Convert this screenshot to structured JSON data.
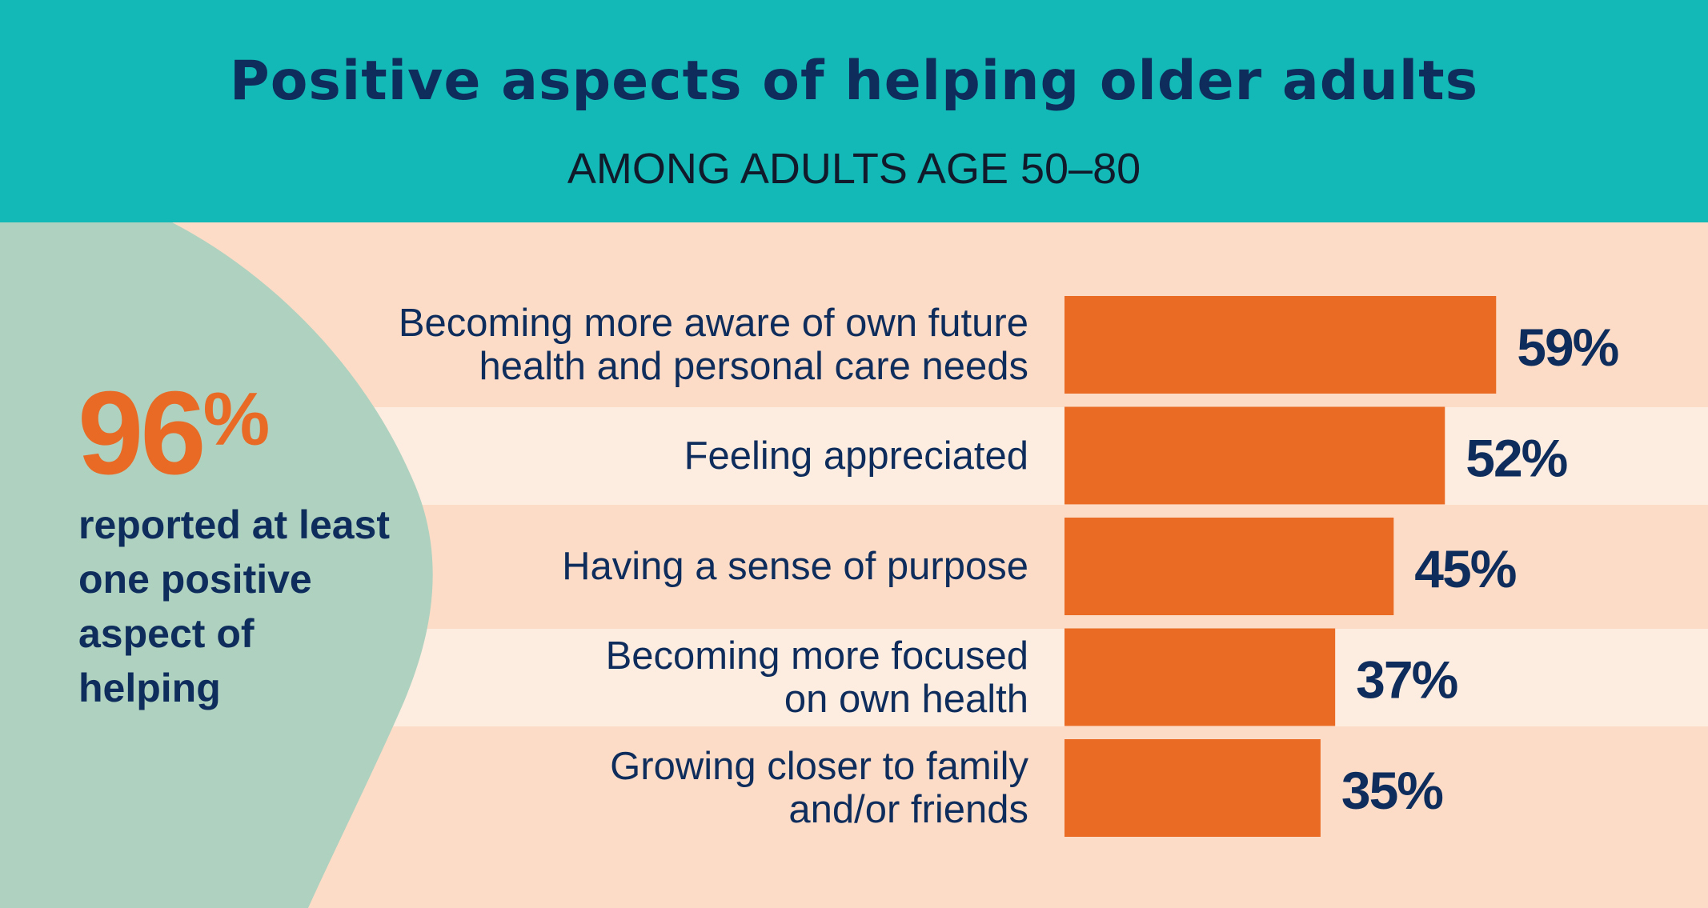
{
  "title": "Positive aspects of helping older adults",
  "subtitle": "AMONG ADULTS AGE 50–80",
  "callout": {
    "value": "96",
    "unit": "%",
    "text": "reported at least one positive aspect of helping"
  },
  "colors": {
    "header": "#12b9b6",
    "background": "#fcdcc6",
    "stripe_light": "#fdece0",
    "blob": "#afd1bf",
    "bar": "#ea6b23",
    "navy": "#0f2d5c",
    "accent": "#e86a25"
  },
  "chart_data": {
    "type": "bar",
    "orientation": "horizontal",
    "title": "Positive aspects of helping older adults",
    "subtitle": "AMONG ADULTS AGE 50–80",
    "categories": [
      [
        "Becoming more aware of own future",
        "health and personal care needs"
      ],
      [
        "Feeling appreciated"
      ],
      [
        "Having a sense of purpose"
      ],
      [
        "Becoming more focused",
        "on own health"
      ],
      [
        "Growing closer to family",
        "and/or friends"
      ]
    ],
    "values": [
      59,
      52,
      45,
      37,
      35
    ],
    "value_labels": [
      "59%",
      "52%",
      "45%",
      "37%",
      "35%"
    ],
    "xlim": [
      0,
      100
    ],
    "grid": false,
    "legend": "none"
  }
}
